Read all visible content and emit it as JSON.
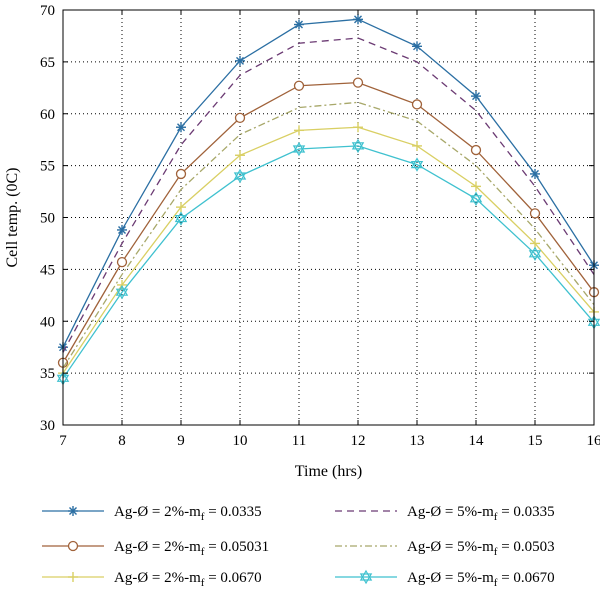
{
  "chart_data": {
    "type": "line",
    "xlabel": "Time (hrs)",
    "ylabel": "Cell temp. (0C)",
    "xlim": [
      7,
      16
    ],
    "ylim": [
      30,
      70
    ],
    "grid": true,
    "legend_position": "bottom",
    "x": [
      7,
      8,
      9,
      10,
      11,
      12,
      13,
      14,
      15,
      16
    ],
    "x_ticks": [
      "7",
      "8",
      "9",
      "10",
      "11",
      "12",
      "13",
      "14",
      "15",
      "16"
    ],
    "y_ticks": [
      "30",
      "35",
      "40",
      "45",
      "50",
      "55",
      "60",
      "65",
      "70"
    ],
    "series": [
      {
        "name": "Ag-Ø = 2%-m",
        "subscript": "f",
        "suffix": " = 0.0335",
        "color": "#2b6fa3",
        "dash": "",
        "marker": "asterisk",
        "values": [
          37.5,
          48.8,
          58.7,
          65.1,
          68.6,
          69.1,
          66.5,
          61.7,
          54.2,
          45.4
        ]
      },
      {
        "name": "Ag-Ø = 5%-m",
        "subscript": "f",
        "suffix": " = 0.0335",
        "color": "#6b3a73",
        "dash": "7,5",
        "marker": "none",
        "values": [
          37.0,
          47.5,
          57.0,
          63.7,
          66.8,
          67.3,
          65.0,
          60.3,
          53.0,
          44.5
        ]
      },
      {
        "name": "Ag-Ø = 2%-m",
        "subscript": "f",
        "suffix": " = 0.05031",
        "color": "#a0623a",
        "dash": "",
        "marker": "circle",
        "values": [
          36.0,
          45.7,
          54.2,
          59.6,
          62.7,
          63.0,
          60.9,
          56.5,
          50.4,
          42.8
        ]
      },
      {
        "name": "Ag-Ø = 5%-m",
        "subscript": "f",
        "suffix": " = 0.0503",
        "color": "#a8a86a",
        "dash": "7,3,2,3",
        "marker": "none",
        "values": [
          35.5,
          44.5,
          52.7,
          58.0,
          60.6,
          61.1,
          59.3,
          55.0,
          48.9,
          41.6
        ]
      },
      {
        "name": "Ag-Ø = 2%-m",
        "subscript": "f",
        "suffix": " = 0.0670",
        "color": "#d9cf63",
        "dash": "",
        "marker": "plus",
        "values": [
          35.0,
          43.5,
          51.0,
          56.0,
          58.4,
          58.7,
          56.9,
          53.0,
          47.5,
          40.9
        ]
      },
      {
        "name": "Ag-Ø = 5%-m",
        "subscript": "f",
        "suffix": " = 0.0670",
        "color": "#3fc1cf",
        "dash": "",
        "marker": "hexagram",
        "values": [
          34.5,
          42.8,
          49.9,
          54.0,
          56.6,
          56.9,
          55.1,
          51.8,
          46.5,
          39.9
        ]
      }
    ]
  }
}
